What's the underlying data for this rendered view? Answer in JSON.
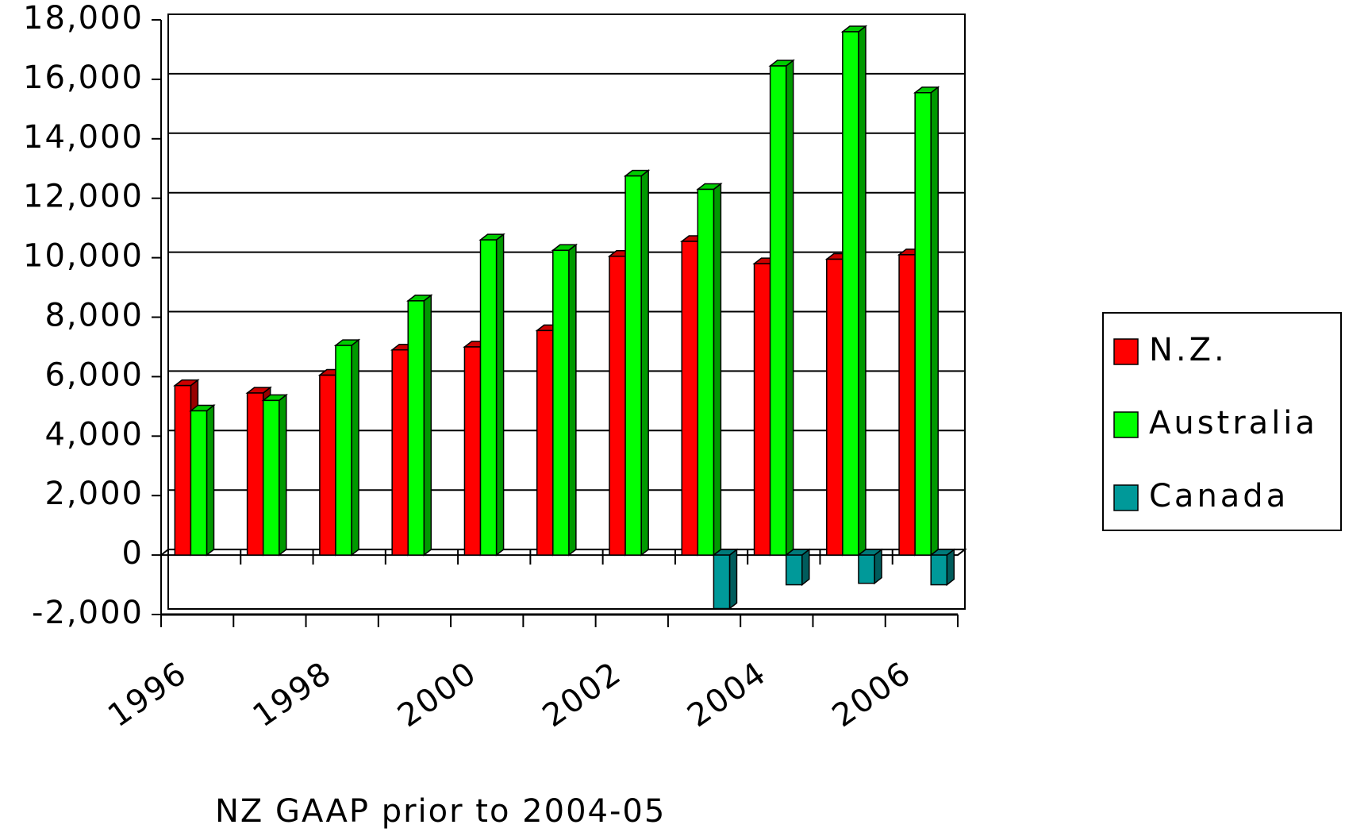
{
  "chart_data": {
    "type": "bar",
    "categories": [
      "1996",
      null,
      "1998",
      null,
      "2000",
      null,
      "2002",
      null,
      "2004",
      null,
      "2006"
    ],
    "series": [
      {
        "name": "N.Z.",
        "color": "#ff0000",
        "values": [
          5700,
          5450,
          6050,
          6900,
          7000,
          7550,
          10050,
          10550,
          9800,
          9950,
          10100
        ]
      },
      {
        "name": "Australia",
        "color": "#00ff00",
        "values": [
          4850,
          5200,
          7050,
          8550,
          10600,
          10250,
          12750,
          12300,
          16450,
          17600,
          15550
        ]
      },
      {
        "name": "Canada",
        "color": "#009999",
        "values": [
          null,
          null,
          null,
          null,
          null,
          null,
          null,
          -1800,
          -1000,
          -950,
          -1000
        ]
      }
    ],
    "ylim": [
      -2000,
      18000
    ],
    "yticks": [
      {
        "value": -2000,
        "label": "-2,000"
      },
      0,
      {
        "value": 2000,
        "label": "2,000"
      },
      {
        "value": 4000,
        "label": "4,000"
      },
      {
        "value": 6000,
        "label": "6,000"
      },
      {
        "value": 8000,
        "label": "8,000"
      },
      {
        "value": 10000,
        "label": "10,000"
      },
      {
        "value": 12000,
        "label": "12,000"
      },
      {
        "value": 14000,
        "label": "14,000"
      },
      {
        "value": 16000,
        "label": "16,000"
      },
      {
        "value": 18000,
        "label": "18,000"
      }
    ],
    "grid": true,
    "legend": "right",
    "annotation": "NZ GAAP prior to 2004-05"
  }
}
